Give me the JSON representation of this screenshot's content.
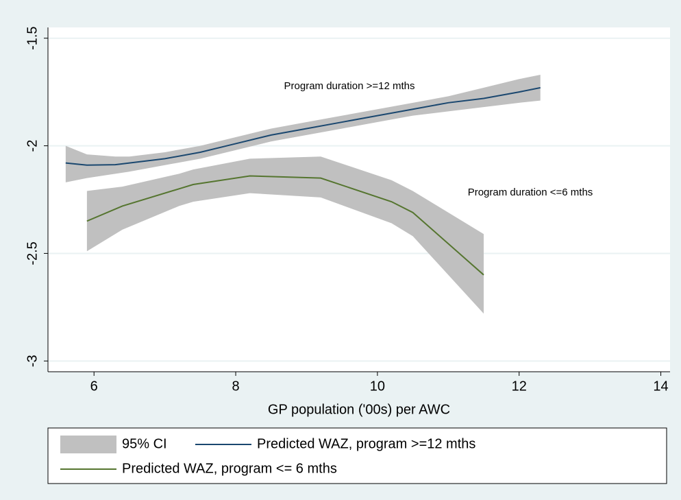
{
  "chart_data": {
    "type": "line",
    "x_label": "GP population ('00s) per AWC",
    "xlim": [
      5.35,
      14.13
    ],
    "xticks": [
      6,
      8,
      10,
      12,
      14
    ],
    "ylim": [
      -3.05,
      -1.45
    ],
    "yticks": [
      -3,
      -2.5,
      -2,
      -1.5
    ],
    "grid": true,
    "ci_band": {
      "name": "95% CI",
      "color": "#c0c0c0"
    },
    "series": [
      {
        "name": "Predicted WAZ, program >=12 mths",
        "color": "#1a476f",
        "x": [
          5.6,
          5.9,
          6.3,
          6.5,
          7,
          7.5,
          8,
          8.5,
          9,
          9.5,
          10,
          10.5,
          11,
          11.5,
          12,
          12.3
        ],
        "values": [
          -2.08,
          -2.09,
          -2.088,
          -2.08,
          -2.06,
          -2.03,
          -1.99,
          -1.95,
          -1.92,
          -1.89,
          -1.86,
          -1.83,
          -1.8,
          -1.78,
          -1.75,
          -1.73
        ],
        "upper": [
          -2.0,
          -2.04,
          -2.05,
          -2.05,
          -2.03,
          -2.0,
          -1.96,
          -1.92,
          -1.89,
          -1.86,
          -1.83,
          -1.8,
          -1.77,
          -1.73,
          -1.69,
          -1.67
        ],
        "lower": [
          -2.17,
          -2.15,
          -2.13,
          -2.12,
          -2.09,
          -2.06,
          -2.02,
          -1.98,
          -1.95,
          -1.92,
          -1.89,
          -1.86,
          -1.84,
          -1.82,
          -1.8,
          -1.79
        ]
      },
      {
        "name": "Predicted WAZ, program <= 6 mths",
        "color": "#55752f",
        "x": [
          5.9,
          6.4,
          7.2,
          7.4,
          8.2,
          9.2,
          10.2,
          10.5,
          11.5
        ],
        "values": [
          -2.35,
          -2.28,
          -2.2,
          -2.18,
          -2.14,
          -2.15,
          -2.26,
          -2.31,
          -2.6
        ],
        "upper": [
          -2.21,
          -2.19,
          -2.13,
          -2.11,
          -2.06,
          -2.05,
          -2.16,
          -2.21,
          -2.41
        ],
        "lower": [
          -2.49,
          -2.39,
          -2.28,
          -2.26,
          -2.22,
          -2.24,
          -2.36,
          -2.42,
          -2.78
        ]
      }
    ],
    "annotations": [
      "Program duration >=12 mths",
      "Program duration <=6 mths"
    ]
  }
}
